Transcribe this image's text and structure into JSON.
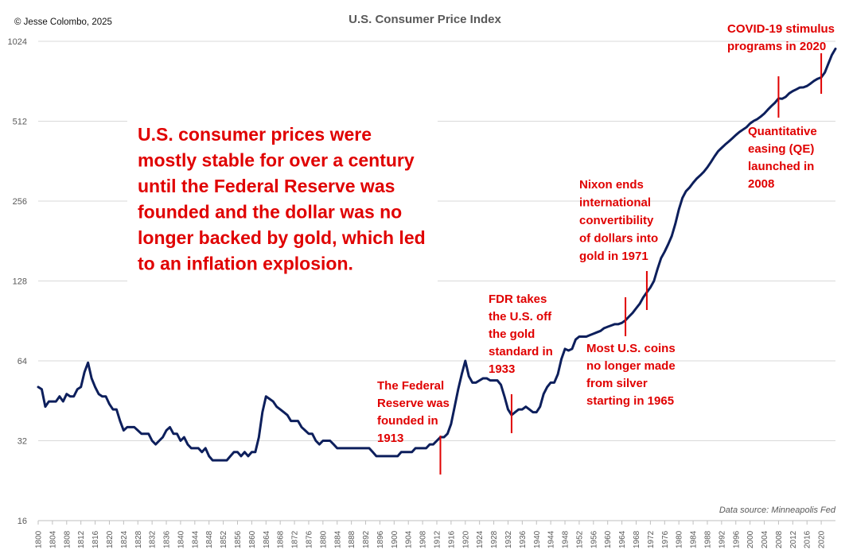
{
  "header": {
    "copyright": "© Jesse Colombo, 2025",
    "title": "U.S. Consumer Price Index"
  },
  "source_note": "Data source: Minneapolis Fed",
  "colors": {
    "line": "#0d1f5c",
    "annotation": "#e00000",
    "grid": "#d9d9d9",
    "axis_text": "#595959"
  },
  "main_annotation": [
    "U.S. consumer prices were",
    "mostly stable for over a century",
    "until the Federal Reserve was",
    "founded and the dollar was no",
    "longer backed by gold, which led",
    "to an inflation explosion."
  ],
  "events": [
    {
      "year": 1913,
      "lines": [
        "The Federal",
        "Reserve was",
        "founded in",
        "1913"
      ]
    },
    {
      "year": 1933,
      "lines": [
        "FDR takes",
        "the U.S. off",
        "the gold",
        "standard in",
        "1933"
      ]
    },
    {
      "year": 1965,
      "lines": [
        "Most U.S. coins",
        "no longer made",
        "from silver",
        "starting in 1965"
      ]
    },
    {
      "year": 1971,
      "lines": [
        "Nixon ends",
        "international",
        "convertibility",
        "of dollars into",
        "gold in 1971"
      ]
    },
    {
      "year": 2008,
      "lines": [
        "Quantitative",
        "easing (QE)",
        "launched in",
        "2008"
      ]
    },
    {
      "year": 2020,
      "lines": [
        "COVID-19 stimulus",
        "programs in 2020"
      ]
    }
  ],
  "chart_data": {
    "type": "line",
    "title": "U.S. Consumer Price Index",
    "xlabel": "",
    "ylabel": "",
    "y_scale": "log2",
    "ylim": [
      16,
      1024
    ],
    "y_ticks": [
      16,
      32,
      64,
      128,
      256,
      512,
      1024
    ],
    "xlim": [
      1800,
      2024
    ],
    "x_ticks": [
      1800,
      1804,
      1808,
      1812,
      1816,
      1820,
      1824,
      1828,
      1832,
      1836,
      1840,
      1844,
      1848,
      1852,
      1856,
      1860,
      1864,
      1868,
      1872,
      1876,
      1880,
      1884,
      1888,
      1892,
      1896,
      1900,
      1904,
      1908,
      1912,
      1916,
      1920,
      1924,
      1928,
      1932,
      1936,
      1940,
      1944,
      1948,
      1952,
      1956,
      1960,
      1964,
      1968,
      1972,
      1976,
      1980,
      1984,
      1988,
      1992,
      1996,
      2000,
      2004,
      2008,
      2012,
      2016,
      2020
    ],
    "grid": "horizontal",
    "series": [
      {
        "name": "",
        "x": [
          1800,
          1801,
          1802,
          1803,
          1804,
          1805,
          1806,
          1807,
          1808,
          1809,
          1810,
          1811,
          1812,
          1813,
          1814,
          1815,
          1816,
          1817,
          1818,
          1819,
          1820,
          1821,
          1822,
          1823,
          1824,
          1825,
          1826,
          1827,
          1828,
          1829,
          1830,
          1831,
          1832,
          1833,
          1834,
          1835,
          1836,
          1837,
          1838,
          1839,
          1840,
          1841,
          1842,
          1843,
          1844,
          1845,
          1846,
          1847,
          1848,
          1849,
          1850,
          1851,
          1852,
          1853,
          1854,
          1855,
          1856,
          1857,
          1858,
          1859,
          1860,
          1861,
          1862,
          1863,
          1864,
          1865,
          1866,
          1867,
          1868,
          1869,
          1870,
          1871,
          1872,
          1873,
          1874,
          1875,
          1876,
          1877,
          1878,
          1879,
          1880,
          1881,
          1882,
          1883,
          1884,
          1885,
          1886,
          1887,
          1888,
          1889,
          1890,
          1891,
          1892,
          1893,
          1894,
          1895,
          1896,
          1897,
          1898,
          1899,
          1900,
          1901,
          1902,
          1903,
          1904,
          1905,
          1906,
          1907,
          1908,
          1909,
          1910,
          1911,
          1912,
          1913,
          1914,
          1915,
          1916,
          1917,
          1918,
          1919,
          1920,
          1921,
          1922,
          1923,
          1924,
          1925,
          1926,
          1927,
          1928,
          1929,
          1930,
          1931,
          1932,
          1933,
          1934,
          1935,
          1936,
          1937,
          1938,
          1939,
          1940,
          1941,
          1942,
          1943,
          1944,
          1945,
          1946,
          1947,
          1948,
          1949,
          1950,
          1951,
          1952,
          1953,
          1954,
          1955,
          1956,
          1957,
          1958,
          1959,
          1960,
          1961,
          1962,
          1963,
          1964,
          1965,
          1966,
          1967,
          1968,
          1969,
          1970,
          1971,
          1972,
          1973,
          1974,
          1975,
          1976,
          1977,
          1978,
          1979,
          1980,
          1981,
          1982,
          1983,
          1984,
          1985,
          1986,
          1987,
          1988,
          1989,
          1990,
          1991,
          1992,
          1993,
          1994,
          1995,
          1996,
          1997,
          1998,
          1999,
          2000,
          2001,
          2002,
          2003,
          2004,
          2005,
          2006,
          2007,
          2008,
          2009,
          2010,
          2011,
          2012,
          2013,
          2014,
          2015,
          2016,
          2017,
          2018,
          2019,
          2020,
          2021,
          2022,
          2023,
          2024
        ],
        "values": [
          51,
          50,
          43,
          45,
          45,
          45,
          47,
          45,
          48,
          47,
          47,
          50,
          51,
          58,
          63,
          55,
          51,
          48,
          47,
          47,
          44,
          42,
          42,
          38,
          35,
          36,
          36,
          36,
          35,
          34,
          34,
          34,
          32,
          31,
          32,
          33,
          35,
          36,
          34,
          34,
          32,
          33,
          31,
          30,
          30,
          30,
          29,
          30,
          28,
          27,
          27,
          27,
          27,
          27,
          28,
          29,
          29,
          28,
          29,
          28,
          29,
          29,
          33,
          41,
          47,
          46,
          45,
          43,
          42,
          41,
          40,
          38,
          38,
          38,
          36,
          35,
          34,
          34,
          32,
          31,
          32,
          32,
          32,
          31,
          30,
          30,
          30,
          30,
          30,
          30,
          30,
          30,
          30,
          30,
          29,
          28,
          28,
          28,
          28,
          28,
          28,
          28,
          29,
          29,
          29,
          29,
          30,
          30,
          30,
          30,
          31,
          31,
          32,
          33,
          33,
          34,
          37,
          43,
          50,
          57,
          64,
          56,
          53,
          53,
          54,
          55,
          55,
          54,
          54,
          54,
          52,
          47,
          42,
          40,
          41,
          42,
          42,
          43,
          42,
          41,
          41,
          43,
          48,
          51,
          53,
          53,
          57,
          65,
          71,
          70,
          71,
          77,
          79,
          79,
          79,
          80,
          81,
          82,
          83,
          85,
          86,
          87,
          88,
          88,
          89,
          91,
          94,
          97,
          101,
          105,
          111,
          116,
          121,
          128,
          142,
          156,
          165,
          176,
          189,
          210,
          238,
          263,
          279,
          288,
          300,
          311,
          320,
          330,
          343,
          359,
          377,
          394,
          406,
          418,
          429,
          441,
          454,
          466,
          476,
          486,
          502,
          513,
          521,
          533,
          547,
          566,
          584,
          601,
          624,
          622,
          632,
          652,
          665,
          675,
          686,
          687,
          695,
          710,
          727,
          740,
          749,
          781,
          844,
          911,
          960
        ]
      }
    ]
  }
}
